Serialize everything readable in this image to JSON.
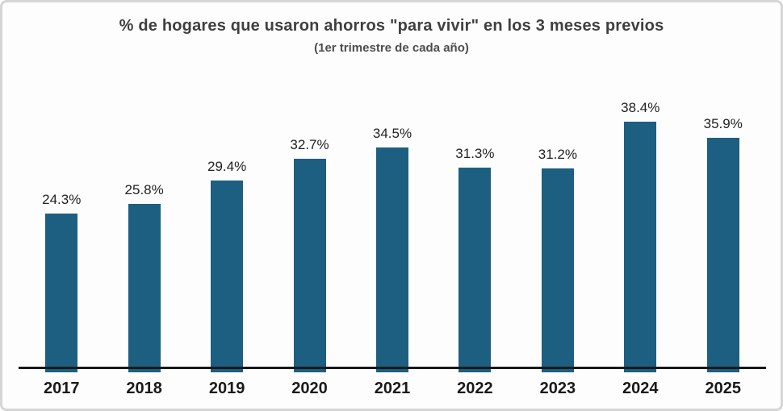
{
  "chart_data": {
    "type": "bar",
    "title": "% de hogares que usaron ahorros \"para vivir\" en los 3 meses previos",
    "subtitle": "(1er trimestre de cada año)",
    "categories": [
      "2017",
      "2018",
      "2019",
      "2020",
      "2021",
      "2022",
      "2023",
      "2024",
      "2025"
    ],
    "values": [
      24.3,
      25.8,
      29.4,
      32.7,
      34.5,
      31.3,
      31.2,
      38.4,
      35.9
    ],
    "value_labels": [
      "24.3%",
      "25.8%",
      "29.4%",
      "32.7%",
      "34.5%",
      "31.3%",
      "31.2%",
      "38.4%",
      "35.9%"
    ],
    "xlabel": "",
    "ylabel": "",
    "ylim": [
      0,
      40
    ],
    "grid": false,
    "legend": false,
    "bar_color": "#1d5f80",
    "axis_color": "#191919",
    "title_color": "#3f3f3f"
  }
}
